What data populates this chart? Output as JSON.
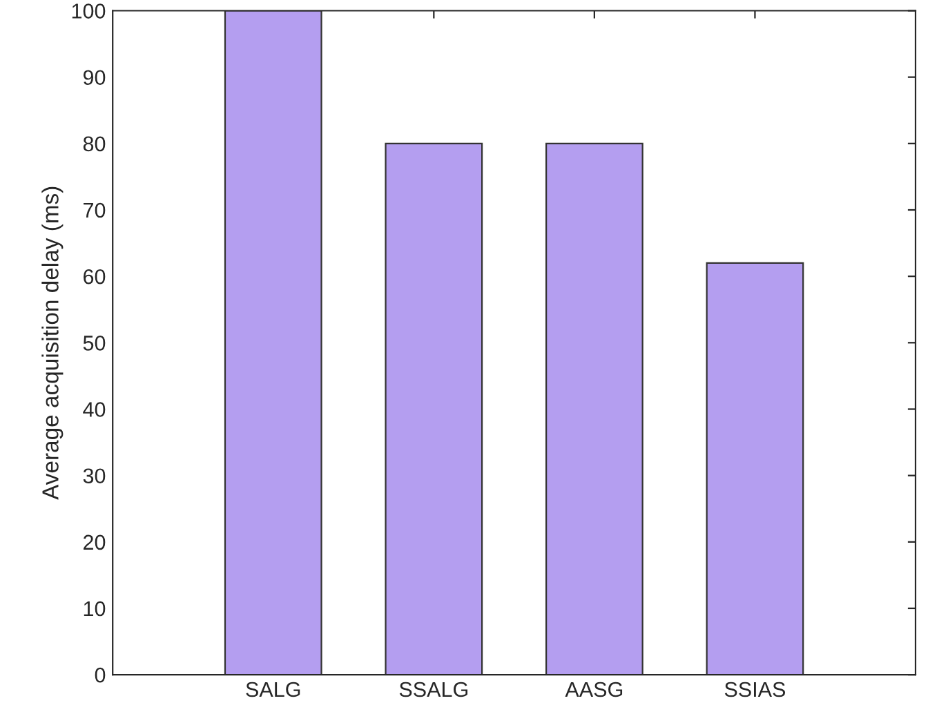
{
  "chart_data": {
    "type": "bar",
    "ylabel": "Average acquisition delay (ms)",
    "categories": [
      "SALG",
      "SSALG",
      "AASG",
      "SSIAS"
    ],
    "values": [
      100,
      80,
      80,
      62
    ],
    "color": "#b49ef0",
    "ylim": [
      0,
      100
    ],
    "yticks": [
      0,
      10,
      20,
      30,
      40,
      50,
      60,
      70,
      80,
      90,
      100
    ],
    "grid": false
  }
}
